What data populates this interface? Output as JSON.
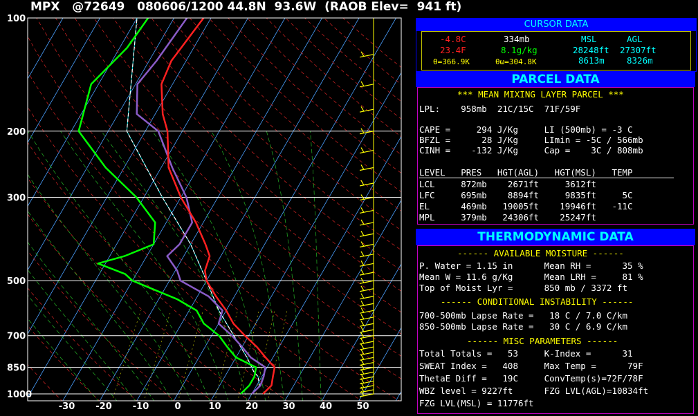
{
  "header": {
    "title": "MPX   @72649   080606/1200 44.8N  93.6W  (RAOB Elev=  941 ft)"
  },
  "cursor": {
    "heading": "CURSOR DATA",
    "temp_c": "-4.8C",
    "pres": "334mb",
    "msl_label": "MSL",
    "agl_label": "AGL",
    "temp_f": "23.4F",
    "mix": "8.1g/kg",
    "msl_ft": "28248ft",
    "agl_ft": "27307ft",
    "theta": "θ=366.9K",
    "theta_w": "θω=304.8K",
    "msl_m": "8613m",
    "agl_m": "8326m"
  },
  "parcel": {
    "heading": "PARCEL DATA",
    "subtitle": "*** MEAN MIXING LAYER PARCEL ***",
    "lpl": "LPL:    958mb  21C/15C  71F/59F",
    "rows": [
      "CAPE =     294 J/Kg     LI (500mb) = -3 C",
      "BFZL =      28 J/Kg     LImin = -5C / 566mb",
      "CINH =    -132 J/Kg     Cap =    3C / 808mb"
    ],
    "table_header": "LEVEL   PRES   HGT(AGL)   HGT(MSL)   TEMP",
    "table": [
      "LCL     872mb    2671ft     3612ft",
      "LFC     695mb    8894ft     9835ft     5C",
      "EL      469mb   19005ft    19946ft   -11C",
      "MPL     379mb   24306ft    25247ft"
    ]
  },
  "thermo": {
    "heading": "THERMODYNAMIC DATA",
    "sec1": "------ AVAILABLE MOISTURE ------",
    "moist": [
      "P. Water = 1.15 in      Mean RH =      35 %",
      "Mean W = 11.6 g/Kg      Mean LRH =     81 %",
      "Top of Moist Lyr =      850 mb / 3372 ft"
    ],
    "sec2": "------ CONDITIONAL INSTABILITY ------",
    "instab": [
      "700-500mb Lapse Rate =   18 C / 7.0 C/km",
      "850-500mb Lapse Rate =   30 C / 6.9 C/km"
    ],
    "sec3": "------ MISC PARAMETERS ------",
    "misc": [
      "Total Totals =   53     K-Index =      31",
      "SWEAT Index =   408     Max Temp =      79F",
      "ThetaE Diff =   19C     ConvTemp(s)=72F/78F",
      "WBZ level = 9227ft      FZG LVL(AGL)=10834ft",
      "FZG LVL(MSL) = 11776ft"
    ]
  },
  "chart_data": {
    "type": "line",
    "subtype": "skew-T log-P sounding",
    "pressure_ticks": [
      "100",
      "200",
      "300",
      "500",
      "700",
      "850",
      "1000"
    ],
    "pressure_values": [
      100,
      200,
      300,
      500,
      700,
      850,
      1000
    ],
    "temp_ticks": [
      "-30",
      "-20",
      "-10",
      "0",
      "10",
      "20",
      "30",
      "40",
      "50"
    ],
    "temp_values": [
      -30,
      -20,
      -10,
      0,
      10,
      20,
      30,
      40,
      50
    ],
    "colors": {
      "temperature": "#ff2020",
      "dewpoint": "#00ff00",
      "wetbulb": "#8a5cc8",
      "parcel": "#ffffff",
      "virtual": "#00e0e0",
      "isotherm": "#4aa0ff",
      "dry_adiabat": "#c02020",
      "moist_adiabat": "#20a020",
      "mixing_ratio": "#a0a000",
      "wind": "#ffff00"
    },
    "temperature": [
      [
        1000,
        23
      ],
      [
        950,
        24
      ],
      [
        900,
        23
      ],
      [
        850,
        22
      ],
      [
        800,
        18
      ],
      [
        750,
        14
      ],
      [
        700,
        9
      ],
      [
        650,
        4
      ],
      [
        600,
        0
      ],
      [
        550,
        -5
      ],
      [
        500,
        -10
      ],
      [
        470,
        -12
      ],
      [
        430,
        -13
      ],
      [
        400,
        -16
      ],
      [
        350,
        -22
      ],
      [
        300,
        -30
      ],
      [
        250,
        -38
      ],
      [
        200,
        -44
      ],
      [
        180,
        -48
      ],
      [
        150,
        -53
      ],
      [
        130,
        -54
      ],
      [
        100,
        -52
      ]
    ],
    "dewpoint": [
      [
        1000,
        17
      ],
      [
        950,
        18
      ],
      [
        900,
        18
      ],
      [
        850,
        17
      ],
      [
        800,
        10
      ],
      [
        750,
        6
      ],
      [
        700,
        2
      ],
      [
        650,
        -4
      ],
      [
        600,
        -8
      ],
      [
        560,
        -15
      ],
      [
        500,
        -30
      ],
      [
        480,
        -33
      ],
      [
        450,
        -42
      ],
      [
        430,
        -36
      ],
      [
        400,
        -30
      ],
      [
        350,
        -33
      ],
      [
        300,
        -42
      ],
      [
        250,
        -55
      ],
      [
        200,
        -68
      ],
      [
        150,
        -72
      ],
      [
        120,
        -68
      ],
      [
        100,
        -67
      ]
    ],
    "parcel": [
      [
        958,
        21
      ],
      [
        900,
        19
      ],
      [
        872,
        17
      ],
      [
        800,
        13
      ],
      [
        700,
        6
      ],
      [
        600,
        -2
      ],
      [
        500,
        -10
      ],
      [
        400,
        -20
      ],
      [
        300,
        -35
      ],
      [
        200,
        -55
      ],
      [
        100,
        -70
      ]
    ]
  }
}
